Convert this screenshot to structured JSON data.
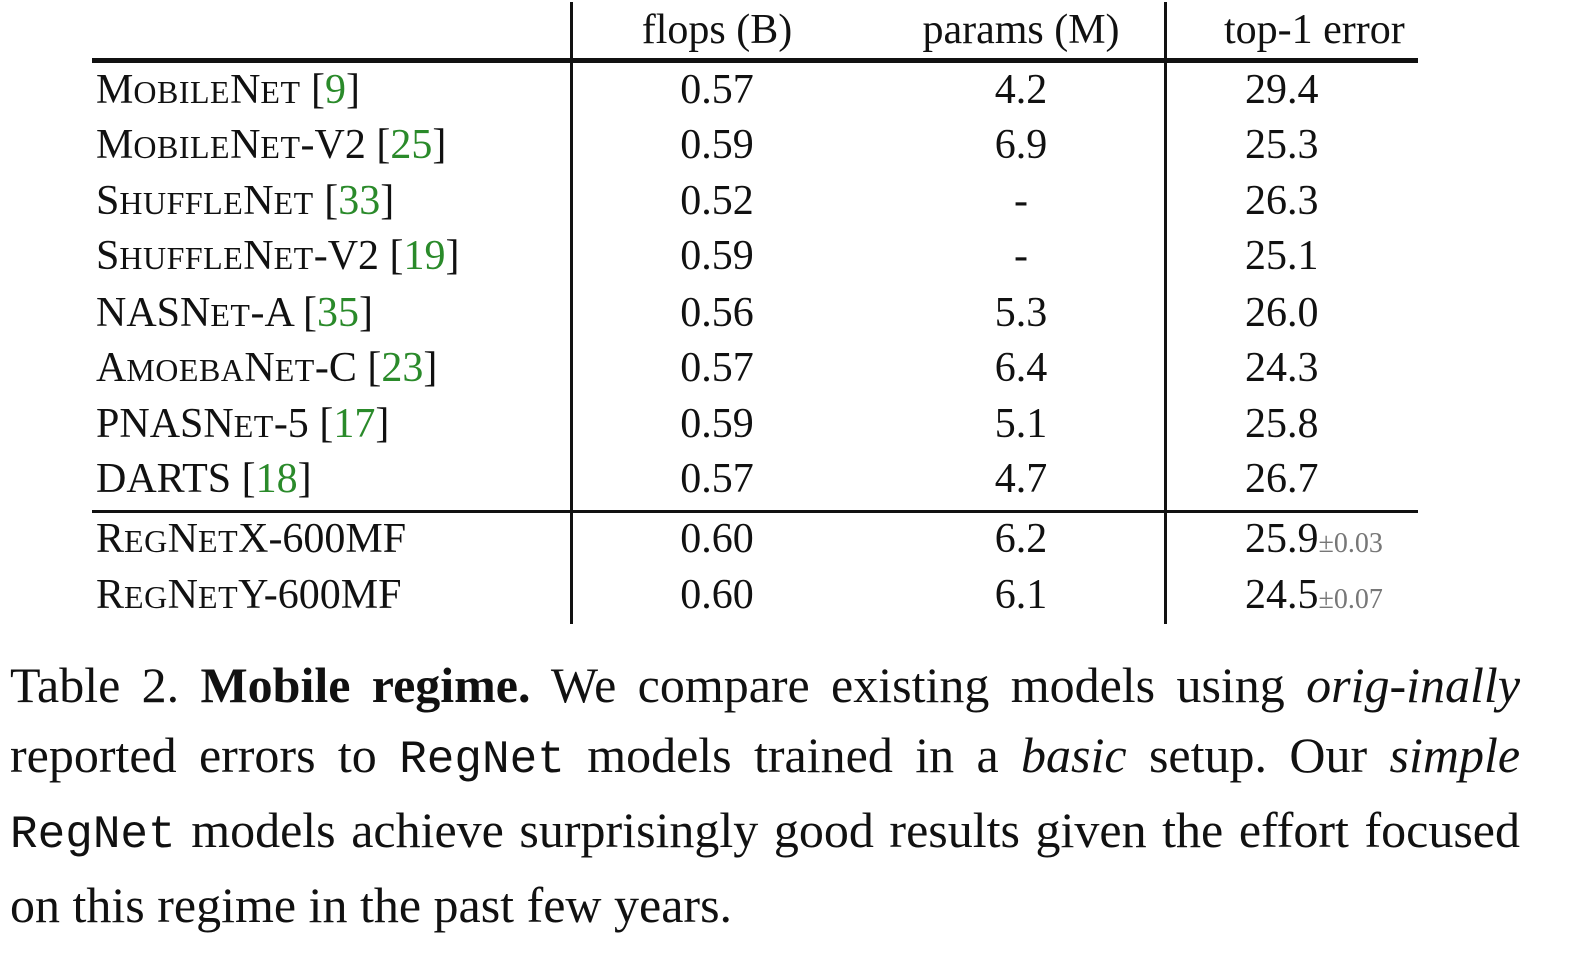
{
  "table": {
    "headers": {
      "model": "",
      "flops": "flops (B)",
      "params": "params (M)",
      "error": "top-1 error"
    },
    "rows": [
      {
        "name_cap": "M",
        "name_sc": "OBILE",
        "name_cap2": "N",
        "name_sc2": "ET",
        "name_rest": "",
        "ref": "9",
        "flops": "0.57",
        "params": "4.2",
        "error": "29.4",
        "pm": ""
      },
      {
        "name_cap": "M",
        "name_sc": "OBILE",
        "name_cap2": "N",
        "name_sc2": "ET",
        "name_rest": "-V2",
        "ref": "25",
        "flops": "0.59",
        "params": "6.9",
        "error": "25.3",
        "pm": ""
      },
      {
        "name_cap": "S",
        "name_sc": "HUFFLE",
        "name_cap2": "N",
        "name_sc2": "ET",
        "name_rest": "",
        "ref": "33",
        "flops": "0.52",
        "params": "-",
        "error": "26.3",
        "pm": ""
      },
      {
        "name_cap": "S",
        "name_sc": "HUFFLE",
        "name_cap2": "N",
        "name_sc2": "ET",
        "name_rest": "-V2",
        "ref": "19",
        "flops": "0.59",
        "params": "-",
        "error": "25.1",
        "pm": ""
      },
      {
        "name_cap": "NASN",
        "name_sc": "ET",
        "name_cap2": "",
        "name_sc2": "",
        "name_rest": "-A",
        "ref": "35",
        "flops": "0.56",
        "params": "5.3",
        "error": "26.0",
        "pm": ""
      },
      {
        "name_cap": "A",
        "name_sc": "MOEBA",
        "name_cap2": "N",
        "name_sc2": "ET",
        "name_rest": "-C",
        "ref": "23",
        "flops": "0.57",
        "params": "6.4",
        "error": "24.3",
        "pm": ""
      },
      {
        "name_cap": "PNASN",
        "name_sc": "ET",
        "name_cap2": "",
        "name_sc2": "",
        "name_rest": "-5",
        "ref": "17",
        "flops": "0.59",
        "params": "5.1",
        "error": "25.8",
        "pm": ""
      },
      {
        "name_cap": "DARTS",
        "name_sc": "",
        "name_cap2": "",
        "name_sc2": "",
        "name_rest": "",
        "ref": "18",
        "flops": "0.57",
        "params": "4.7",
        "error": "26.7",
        "pm": ""
      },
      {
        "name_cap": "R",
        "name_sc": "EG",
        "name_cap2": "N",
        "name_sc2": "ET",
        "name_rest": "X-600MF",
        "ref": "",
        "flops": "0.60",
        "params": "6.2",
        "error": "25.9",
        "pm": "±0.03"
      },
      {
        "name_cap": "R",
        "name_sc": "EG",
        "name_cap2": "N",
        "name_sc2": "ET",
        "name_rest": "Y-600MF",
        "ref": "",
        "flops": "0.60",
        "params": "6.1",
        "error": "24.5",
        "pm": "±0.07"
      }
    ]
  },
  "caption": {
    "label": "Table 2.",
    "title": "Mobile regime.",
    "t1": "We compare existing models using",
    "it1": "orig-inally",
    "t2": "reported errors to",
    "mono1": "RegNet",
    "t3": "models trained in a",
    "it2": "basic",
    "t4": "setup. Our",
    "it3": "simple",
    "mono2": "RegNet",
    "t5": "models achieve surprisingly good results given the effort focused on this regime in the past few years."
  }
}
